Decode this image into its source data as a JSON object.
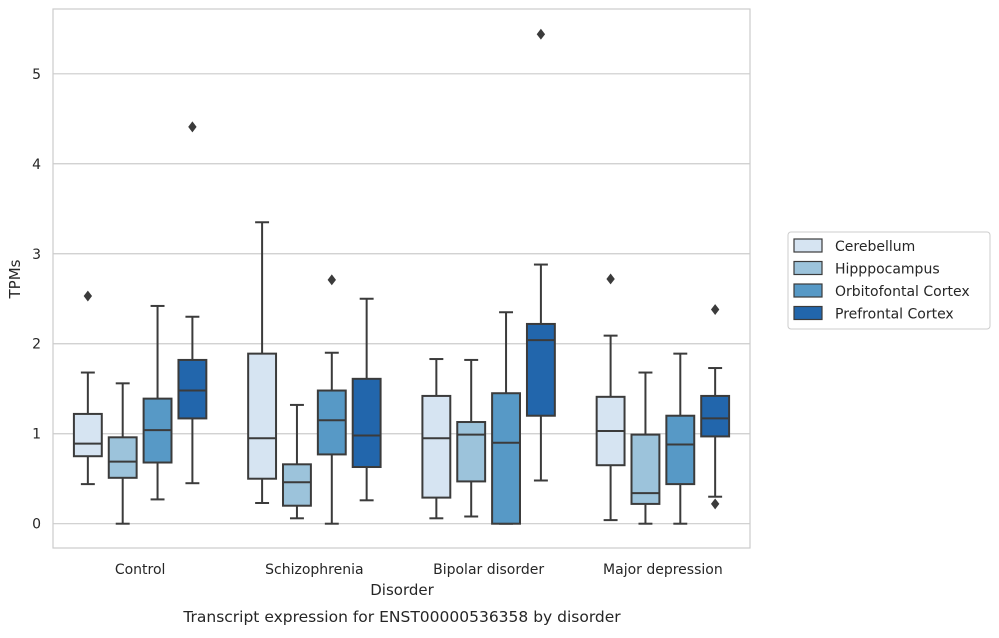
{
  "chart_data": {
    "type": "boxplot",
    "title": "Transcript expression for ENST00000536358 by disorder",
    "xlabel": "Disorder",
    "ylabel": "TPMs",
    "ylim": [
      -0.27,
      5.72
    ],
    "yticks": [
      0,
      1,
      2,
      3,
      4,
      5
    ],
    "grid": "horizontal",
    "legend_position": "right",
    "categories": [
      "Control",
      "Schizophrenia",
      "Bipolar disorder",
      "Major depression"
    ],
    "series": [
      {
        "name": "Cerebellum",
        "color": "#d6e4f2",
        "boxes": [
          {
            "whislo": 0.44,
            "q1": 0.75,
            "med": 0.89,
            "q3": 1.22,
            "whishi": 1.68,
            "fliers": [
              2.53
            ]
          },
          {
            "whislo": 0.23,
            "q1": 0.5,
            "med": 0.95,
            "q3": 1.89,
            "whishi": 3.35,
            "fliers": []
          },
          {
            "whislo": 0.06,
            "q1": 0.29,
            "med": 0.95,
            "q3": 1.42,
            "whishi": 1.83,
            "fliers": []
          },
          {
            "whislo": 0.04,
            "q1": 0.65,
            "med": 1.03,
            "q3": 1.41,
            "whishi": 2.09,
            "fliers": [
              2.72
            ]
          }
        ]
      },
      {
        "name": "Hipppocampus",
        "color": "#9cc3db",
        "boxes": [
          {
            "whislo": 0.0,
            "q1": 0.51,
            "med": 0.69,
            "q3": 0.96,
            "whishi": 1.56,
            "fliers": []
          },
          {
            "whislo": 0.06,
            "q1": 0.2,
            "med": 0.46,
            "q3": 0.66,
            "whishi": 1.32,
            "fliers": []
          },
          {
            "whislo": 0.08,
            "q1": 0.47,
            "med": 0.99,
            "q3": 1.13,
            "whishi": 1.82,
            "fliers": []
          },
          {
            "whislo": 0.0,
            "q1": 0.22,
            "med": 0.34,
            "q3": 0.99,
            "whishi": 1.68,
            "fliers": []
          }
        ]
      },
      {
        "name": "Orbitofontal Cortex",
        "color": "#5799c6",
        "boxes": [
          {
            "whislo": 0.27,
            "q1": 0.68,
            "med": 1.04,
            "q3": 1.39,
            "whishi": 2.42,
            "fliers": []
          },
          {
            "whislo": 0.0,
            "q1": 0.77,
            "med": 1.15,
            "q3": 1.48,
            "whishi": 1.9,
            "fliers": [
              2.71
            ]
          },
          {
            "whislo": 0.0,
            "q1": 0.0,
            "med": 0.9,
            "q3": 1.45,
            "whishi": 2.35,
            "fliers": []
          },
          {
            "whislo": 0.0,
            "q1": 0.44,
            "med": 0.88,
            "q3": 1.2,
            "whishi": 1.89,
            "fliers": []
          }
        ]
      },
      {
        "name": "Prefrontal Cortex",
        "color": "#2266ac",
        "boxes": [
          {
            "whislo": 0.45,
            "q1": 1.17,
            "med": 1.48,
            "q3": 1.82,
            "whishi": 2.3,
            "fliers": [
              4.41
            ]
          },
          {
            "whislo": 0.26,
            "q1": 0.63,
            "med": 0.98,
            "q3": 1.61,
            "whishi": 2.5,
            "fliers": []
          },
          {
            "whislo": 0.48,
            "q1": 1.2,
            "med": 2.04,
            "q3": 2.22,
            "whishi": 2.88,
            "fliers": [
              5.44
            ]
          },
          {
            "whislo": 0.3,
            "q1": 0.97,
            "med": 1.17,
            "q3": 1.42,
            "whishi": 1.73,
            "fliers": [
              2.38,
              0.22
            ]
          }
        ]
      }
    ]
  }
}
